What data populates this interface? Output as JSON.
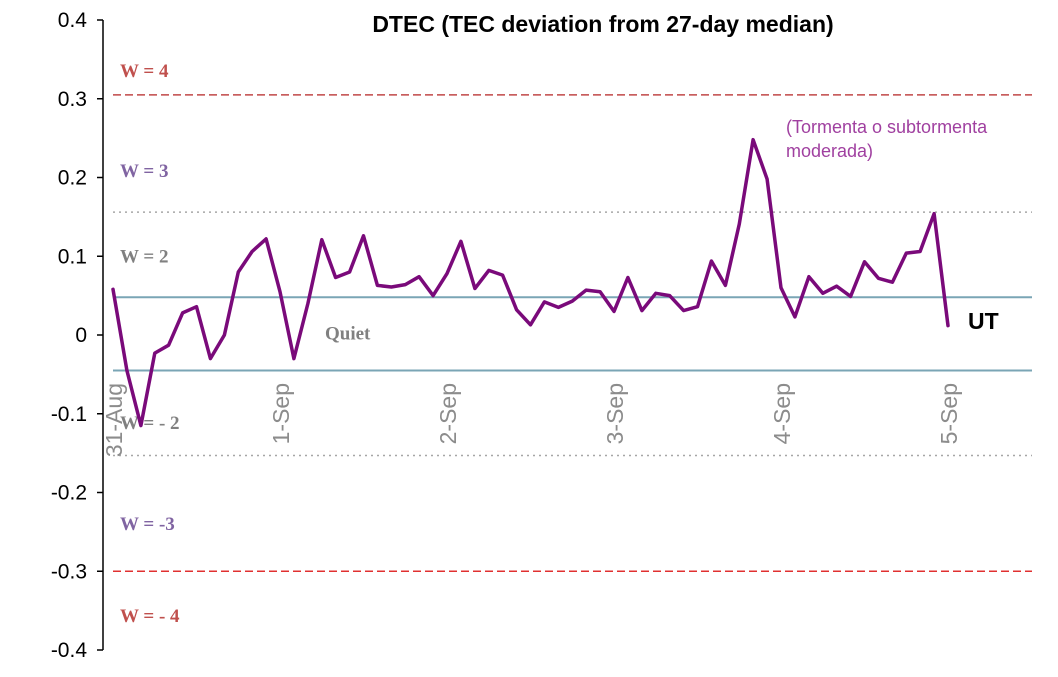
{
  "chart_data": {
    "type": "line",
    "title": "DTEC (TEC deviation from 27-day median)",
    "xlabel": "UT",
    "ylabel": "",
    "ylim": [
      -0.4,
      0.4
    ],
    "yticks": [
      "0.4",
      "0.3",
      "0.2",
      "0.1",
      "0",
      "-0.1",
      "-0.2",
      "-0.3",
      "-0.4"
    ],
    "xtick_labels": [
      "31-Aug",
      "1-Sep",
      "2-Sep",
      "3-Sep",
      "4-Sep",
      "5-Sep"
    ],
    "x_unit": "days since 31-Aug 00 UT",
    "series": [
      {
        "name": "",
        "color": "#7a0a7a",
        "x": [
          0.0,
          0.083,
          0.167,
          0.25,
          0.333,
          0.417,
          0.5,
          0.583,
          0.667,
          0.75,
          0.833,
          0.917,
          1.0,
          1.083,
          1.167,
          1.25,
          1.333,
          1.417,
          1.5,
          1.583,
          1.667,
          1.75,
          1.833,
          1.917,
          2.0,
          2.083,
          2.167,
          2.25,
          2.333,
          2.417,
          2.5,
          2.583,
          2.667,
          2.75,
          2.833,
          2.917,
          3.0,
          3.083,
          3.167,
          3.25,
          3.333,
          3.417,
          3.5,
          3.583,
          3.667,
          3.75,
          3.833,
          3.917,
          4.0,
          4.083,
          4.167,
          4.25,
          4.333,
          4.417,
          4.5,
          4.583,
          4.667,
          4.75,
          4.833,
          4.917,
          5.0
        ],
        "y": [
          0.058,
          -0.045,
          -0.115,
          -0.023,
          -0.013,
          0.028,
          0.036,
          -0.03,
          0.0,
          0.08,
          0.106,
          0.122,
          0.055,
          -0.03,
          0.04,
          0.121,
          0.073,
          0.08,
          0.126,
          0.063,
          0.061,
          0.064,
          0.074,
          0.05,
          0.078,
          0.119,
          0.059,
          0.082,
          0.076,
          0.032,
          0.013,
          0.042,
          0.035,
          0.043,
          0.057,
          0.055,
          0.03,
          0.073,
          0.031,
          0.053,
          0.05,
          0.031,
          0.036,
          0.094,
          0.063,
          0.141,
          0.248,
          0.198,
          0.06,
          0.023,
          0.074,
          0.053,
          0.062,
          0.049,
          0.093,
          0.072,
          0.067,
          0.104,
          0.106,
          0.154,
          0.012
        ]
      }
    ],
    "reference_lines": [
      {
        "y": 0.305,
        "style": "dashed",
        "color": "#c04848"
      },
      {
        "y": 0.156,
        "style": "dotted",
        "color": "#a6a6a6"
      },
      {
        "y": 0.048,
        "style": "solid",
        "color": "#7aa5b5"
      },
      {
        "y": -0.045,
        "style": "solid",
        "color": "#7aa5b5"
      },
      {
        "y": -0.153,
        "style": "dotted",
        "color": "#a6a6a6"
      },
      {
        "y": -0.3,
        "style": "dashed",
        "color": "#e03030"
      }
    ],
    "band_labels": [
      {
        "text": "W = 4",
        "y": 0.335,
        "color": "#c0504d"
      },
      {
        "text": "W = 3",
        "y": 0.208,
        "color": "#8064a2"
      },
      {
        "text": "W = 2",
        "y": 0.1,
        "color": "#808080"
      },
      {
        "text": "Quiet",
        "y": 0.002,
        "color": "#808080"
      },
      {
        "text": "W = - 2",
        "y": -0.112,
        "color": "#808080"
      },
      {
        "text": "W = -3",
        "y": -0.24,
        "color": "#8064a2"
      },
      {
        "text": "W = - 4",
        "y": -0.357,
        "color": "#c0504d"
      }
    ],
    "annotation_lines": [
      "(Tormenta o subtormenta",
      "moderada)"
    ],
    "annotation_color": "#a040a0",
    "grid": false,
    "legend": "none"
  }
}
